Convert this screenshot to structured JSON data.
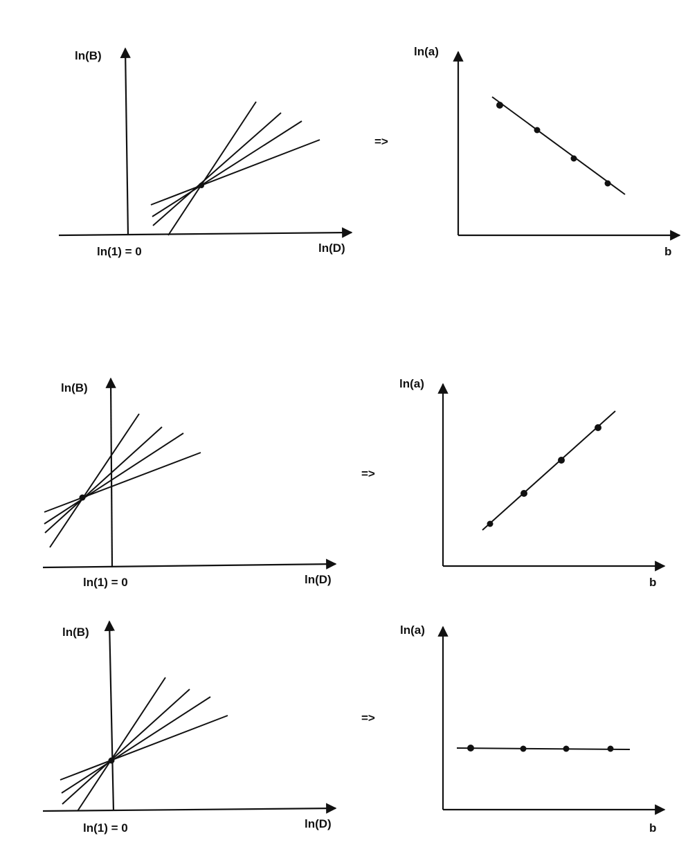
{
  "rows": [
    {
      "left": {
        "ylabel": "ln(B)",
        "xlabel": "ln(D)",
        "origin_label": "ln(1) = 0",
        "line_count": 4,
        "intersection": "right of ln(1) = 0"
      },
      "arrow": "=>",
      "right": {
        "ylabel": "ln(a)",
        "xlabel": "b",
        "trend": "decreasing",
        "point_count": 4
      }
    },
    {
      "left": {
        "ylabel": "ln(B)",
        "xlabel": "ln(D)",
        "origin_label": "ln(1) = 0",
        "line_count": 4,
        "intersection": "left of ln(1) = 0"
      },
      "arrow": "=>",
      "right": {
        "ylabel": "ln(a)",
        "xlabel": "b",
        "trend": "increasing",
        "point_count": 4
      }
    },
    {
      "left": {
        "ylabel": "ln(B)",
        "xlabel": "ln(D)",
        "origin_label": "ln(1) = 0",
        "line_count": 4,
        "intersection": "at ln(1) = 0"
      },
      "arrow": "=>",
      "right": {
        "ylabel": "ln(a)",
        "xlabel": "b",
        "trend": "constant",
        "point_count": 4
      }
    }
  ]
}
